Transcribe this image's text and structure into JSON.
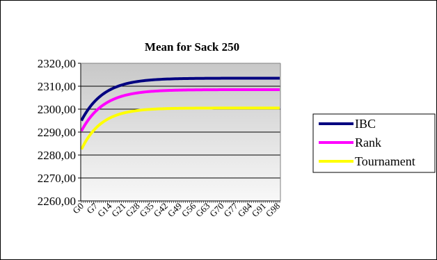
{
  "chart_data": {
    "type": "line",
    "title": "Mean for Sack 250",
    "xlabel": "",
    "ylabel": "",
    "ylim": [
      2260,
      2320
    ],
    "yticks": [
      2260,
      2270,
      2280,
      2290,
      2300,
      2310,
      2320
    ],
    "ytick_labels": [
      "2260,00",
      "2270,00",
      "2280,00",
      "2290,00",
      "2300,00",
      "2310,00",
      "2320,00"
    ],
    "x_labels": [
      "G0",
      "G7",
      "G14",
      "G21",
      "G28",
      "G35",
      "G42",
      "G49",
      "G56",
      "G63",
      "G70",
      "G77",
      "G84",
      "G91",
      "G98"
    ],
    "x_label_step": 7,
    "n_points": 100,
    "grid": "horizontal",
    "legend_position": "right",
    "plot_background": "#c0c0c0",
    "series": [
      {
        "name": "IBC",
        "color": "#000080",
        "start": 2295,
        "end": 2313.5,
        "tau": 11
      },
      {
        "name": "Rank",
        "color": "#ff00ff",
        "start": 2290.5,
        "end": 2308.5,
        "tau": 11
      },
      {
        "name": "Tournament",
        "color": "#ffff00",
        "start": 2282.5,
        "end": 2300.5,
        "tau": 10
      }
    ]
  }
}
